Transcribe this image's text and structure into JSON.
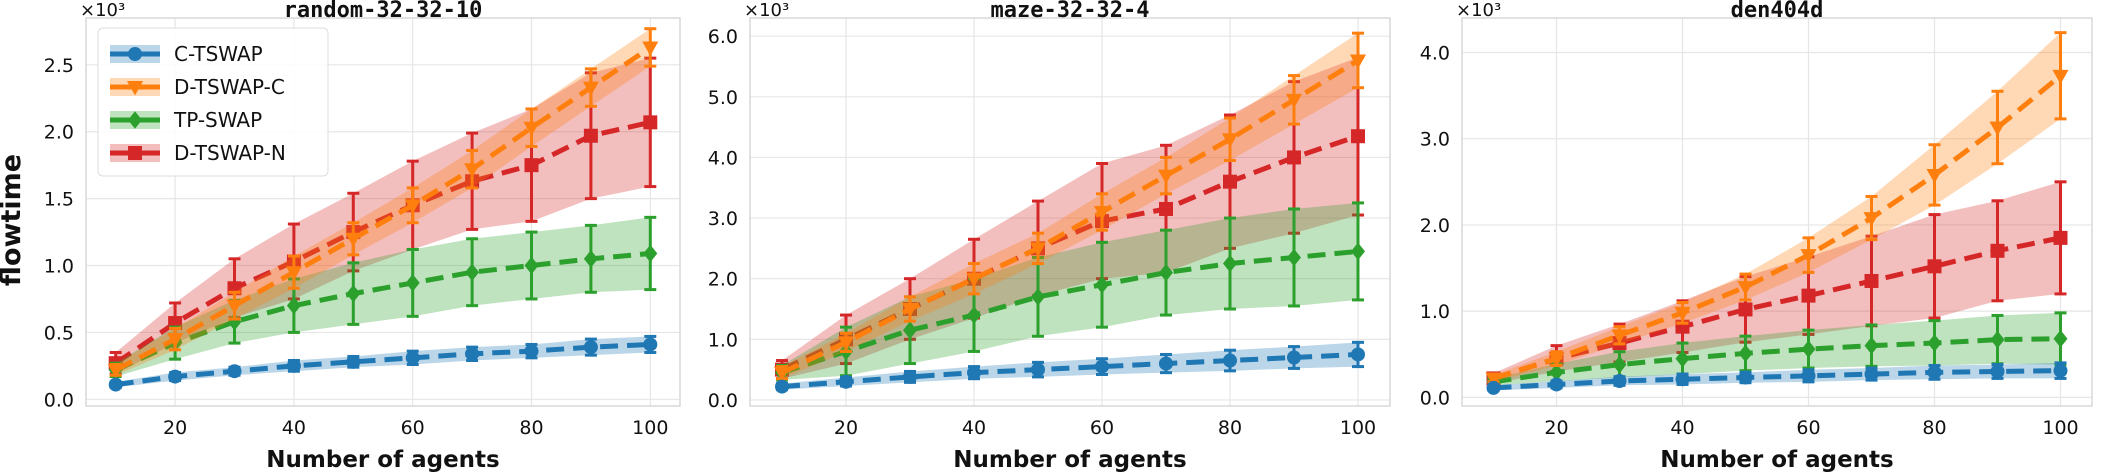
{
  "figure": {
    "ylabel": "flowtime"
  },
  "colors": {
    "C-TSWAP": "#1f77b4",
    "D-TSWAP-C": "#ff7f0e",
    "TP-SWAP": "#2ca02c",
    "D-TSWAP-N": "#d62728",
    "grid": "#e6e6e6",
    "frame": "#d9d9d9"
  },
  "legend": {
    "placement": "top-left of first panel",
    "entries": [
      {
        "label": "C-TSWAP",
        "marker": "circle"
      },
      {
        "label": "D-TSWAP-C",
        "marker": "triangle-down"
      },
      {
        "label": "TP-SWAP",
        "marker": "diamond"
      },
      {
        "label": "D-TSWAP-N",
        "marker": "square"
      }
    ]
  },
  "chart_data": [
    {
      "type": "line",
      "title": "random-32-32-10",
      "xlabel": "Number of agents",
      "ylabel": "flowtime",
      "y_multiplier": "×10³",
      "grid": true,
      "x": [
        10,
        20,
        30,
        40,
        50,
        60,
        70,
        80,
        90,
        100
      ],
      "xlim": [
        5,
        105
      ],
      "xticks": [
        20,
        40,
        60,
        80,
        100
      ],
      "ylim": [
        -0.05,
        2.85
      ],
      "yticks": [
        0.0,
        0.5,
        1.0,
        1.5,
        2.0,
        2.5
      ],
      "ytick_labels": [
        "0.0",
        "0.5",
        "1.0",
        "1.5",
        "2.0",
        "2.5"
      ],
      "series": [
        {
          "name": "C-TSWAP",
          "marker": "circle",
          "values": [
            0.11,
            0.17,
            0.21,
            0.25,
            0.28,
            0.31,
            0.34,
            0.36,
            0.39,
            0.41
          ],
          "err": [
            0.02,
            0.03,
            0.03,
            0.04,
            0.04,
            0.05,
            0.05,
            0.05,
            0.06,
            0.06
          ]
        },
        {
          "name": "D-TSWAP-C",
          "marker": "triangle-down",
          "values": [
            0.22,
            0.45,
            0.7,
            0.95,
            1.2,
            1.45,
            1.72,
            2.03,
            2.33,
            2.63
          ],
          "err": [
            0.04,
            0.08,
            0.1,
            0.12,
            0.12,
            0.13,
            0.14,
            0.14,
            0.14,
            0.14
          ]
        },
        {
          "name": "TP-SWAP",
          "marker": "diamond",
          "values": [
            0.22,
            0.42,
            0.58,
            0.7,
            0.79,
            0.87,
            0.95,
            1.0,
            1.05,
            1.09
          ],
          "err": [
            0.05,
            0.12,
            0.16,
            0.2,
            0.23,
            0.25,
            0.25,
            0.25,
            0.25,
            0.27
          ]
        },
        {
          "name": "D-TSWAP-N",
          "marker": "square",
          "values": [
            0.27,
            0.57,
            0.83,
            1.03,
            1.25,
            1.45,
            1.63,
            1.75,
            1.97,
            2.07
          ],
          "err": [
            0.08,
            0.15,
            0.22,
            0.28,
            0.29,
            0.33,
            0.36,
            0.42,
            0.47,
            0.48
          ]
        }
      ]
    },
    {
      "type": "line",
      "title": "maze-32-32-4",
      "xlabel": "Number of agents",
      "ylabel": "",
      "y_multiplier": "×10³",
      "grid": true,
      "x": [
        10,
        20,
        30,
        40,
        50,
        60,
        70,
        80,
        90,
        100
      ],
      "xlim": [
        5,
        105
      ],
      "xticks": [
        20,
        40,
        60,
        80,
        100
      ],
      "ylim": [
        -0.1,
        6.3
      ],
      "yticks": [
        0.0,
        1.0,
        2.0,
        3.0,
        4.0,
        5.0,
        6.0
      ],
      "ytick_labels": [
        "0.0",
        "1.0",
        "2.0",
        "3.0",
        "4.0",
        "5.0",
        "6.0"
      ],
      "series": [
        {
          "name": "C-TSWAP",
          "marker": "circle",
          "values": [
            0.22,
            0.3,
            0.38,
            0.45,
            0.5,
            0.55,
            0.6,
            0.65,
            0.7,
            0.75
          ],
          "err": [
            0.05,
            0.07,
            0.09,
            0.1,
            0.12,
            0.13,
            0.15,
            0.17,
            0.18,
            0.2
          ]
        },
        {
          "name": "D-TSWAP-C",
          "marker": "triangle-down",
          "values": [
            0.45,
            0.95,
            1.5,
            2.0,
            2.5,
            3.1,
            3.7,
            4.3,
            4.95,
            5.6
          ],
          "err": [
            0.1,
            0.15,
            0.2,
            0.25,
            0.25,
            0.3,
            0.3,
            0.35,
            0.4,
            0.45
          ]
        },
        {
          "name": "TP-SWAP",
          "marker": "diamond",
          "values": [
            0.45,
            0.8,
            1.15,
            1.4,
            1.7,
            1.9,
            2.1,
            2.25,
            2.35,
            2.45
          ],
          "err": [
            0.12,
            0.4,
            0.55,
            0.6,
            0.65,
            0.7,
            0.7,
            0.75,
            0.8,
            0.8
          ]
        },
        {
          "name": "D-TSWAP-N",
          "marker": "square",
          "values": [
            0.5,
            1.0,
            1.5,
            2.0,
            2.5,
            2.95,
            3.15,
            3.6,
            4.0,
            4.35
          ],
          "err": [
            0.15,
            0.4,
            0.5,
            0.65,
            0.78,
            0.95,
            1.05,
            1.1,
            1.25,
            1.3
          ]
        }
      ]
    },
    {
      "type": "line",
      "title": "den404d",
      "xlabel": "Number of agents",
      "ylabel": "",
      "y_multiplier": "×10³",
      "grid": true,
      "x": [
        10,
        20,
        30,
        40,
        50,
        60,
        70,
        80,
        90,
        100
      ],
      "xlim": [
        5,
        105
      ],
      "xticks": [
        20,
        40,
        60,
        80,
        100
      ],
      "ylim": [
        -0.1,
        4.4
      ],
      "yticks": [
        0.0,
        1.0,
        2.0,
        3.0,
        4.0
      ],
      "ytick_labels": [
        "0.0",
        "1.0",
        "2.0",
        "3.0",
        "4.0"
      ],
      "series": [
        {
          "name": "C-TSWAP",
          "marker": "circle",
          "values": [
            0.11,
            0.15,
            0.19,
            0.21,
            0.23,
            0.25,
            0.27,
            0.29,
            0.3,
            0.31
          ],
          "err": [
            0.03,
            0.04,
            0.05,
            0.06,
            0.06,
            0.07,
            0.07,
            0.08,
            0.08,
            0.09
          ]
        },
        {
          "name": "D-TSWAP-C",
          "marker": "triangle-down",
          "values": [
            0.22,
            0.45,
            0.72,
            0.98,
            1.28,
            1.65,
            2.08,
            2.58,
            3.13,
            3.73
          ],
          "err": [
            0.04,
            0.08,
            0.1,
            0.12,
            0.15,
            0.2,
            0.25,
            0.35,
            0.42,
            0.5
          ]
        },
        {
          "name": "TP-SWAP",
          "marker": "diamond",
          "values": [
            0.18,
            0.29,
            0.38,
            0.45,
            0.51,
            0.56,
            0.6,
            0.63,
            0.67,
            0.68
          ],
          "err": [
            0.04,
            0.1,
            0.15,
            0.18,
            0.2,
            0.22,
            0.24,
            0.26,
            0.28,
            0.3
          ]
        },
        {
          "name": "D-TSWAP-N",
          "marker": "square",
          "values": [
            0.22,
            0.45,
            0.63,
            0.82,
            1.02,
            1.18,
            1.35,
            1.52,
            1.7,
            1.85
          ],
          "err": [
            0.06,
            0.15,
            0.22,
            0.3,
            0.38,
            0.45,
            0.52,
            0.6,
            0.58,
            0.65
          ]
        }
      ]
    }
  ]
}
